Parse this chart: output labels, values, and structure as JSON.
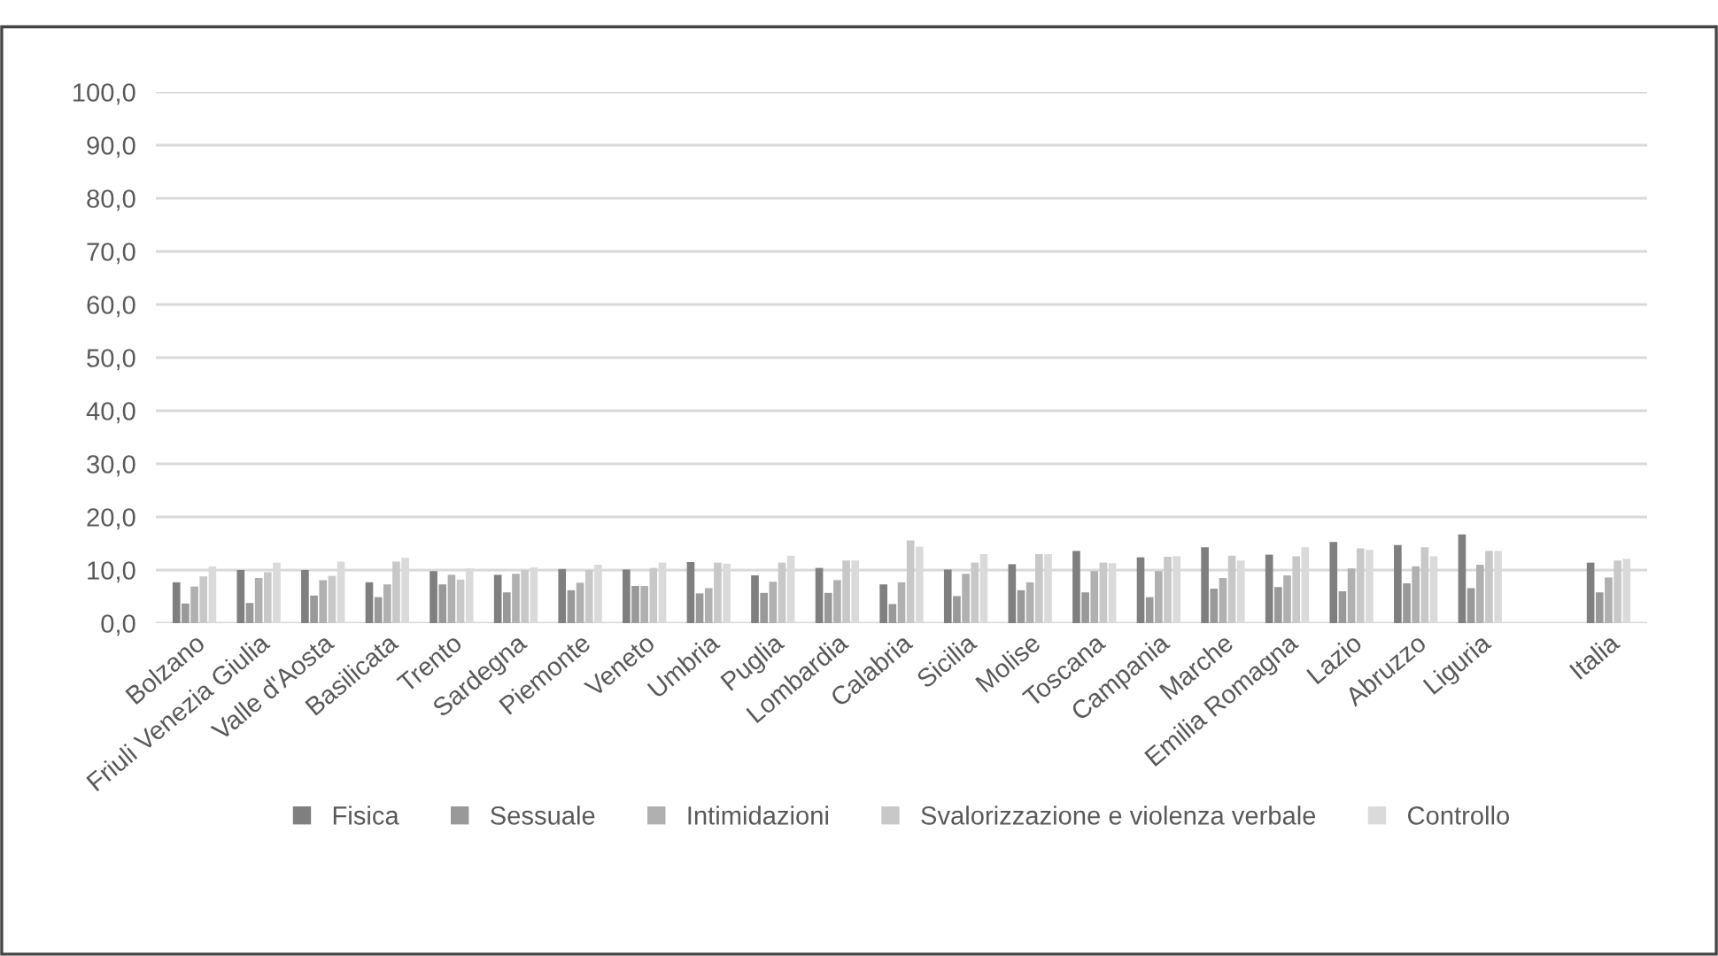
{
  "chart_data": {
    "type": "bar",
    "categories": [
      "Bolzano",
      "Friuli Venezia Giulia",
      "Valle d'Aosta",
      "Basilicata",
      "Trento",
      "Sardegna",
      "Piemonte",
      "Veneto",
      "Umbria",
      "Puglia",
      "Lombardia",
      "Calabria",
      "Sicilia",
      "Molise",
      "Toscana",
      "Campania",
      "Marche",
      "Emilia Romagna",
      "Lazio",
      "Abruzzo",
      "Liguria",
      null,
      "Italia"
    ],
    "series": [
      {
        "name": "Fisica",
        "color": "#7f7f7f",
        "values": [
          7.7,
          10.0,
          10.0,
          7.7,
          9.8,
          9.1,
          10.2,
          10.1,
          11.5,
          9.0,
          10.4,
          7.3,
          10.1,
          11.1,
          13.6,
          12.4,
          14.3,
          12.9,
          15.3,
          14.7,
          16.7,
          null,
          11.4
        ]
      },
      {
        "name": "Sessuale",
        "color": "#999999",
        "values": [
          3.7,
          3.8,
          5.2,
          4.9,
          7.3,
          5.8,
          6.2,
          7.0,
          5.6,
          5.7,
          5.7,
          3.6,
          5.1,
          6.2,
          5.8,
          4.9,
          6.5,
          6.8,
          6.0,
          7.5,
          6.6,
          null,
          5.8
        ]
      },
      {
        "name": "Intimidazioni",
        "color": "#b0b0b0",
        "values": [
          6.9,
          8.5,
          8.1,
          7.3,
          9.1,
          9.3,
          7.6,
          7.0,
          6.6,
          7.8,
          8.1,
          7.7,
          9.3,
          7.7,
          9.8,
          9.8,
          8.5,
          9.0,
          10.3,
          10.7,
          11.0,
          null,
          8.6
        ]
      },
      {
        "name": "Svalorizzazione e violenza verbale",
        "color": "#c8c8c8",
        "values": [
          8.8,
          9.6,
          8.9,
          11.6,
          8.2,
          10.0,
          10.0,
          10.4,
          11.4,
          11.4,
          11.8,
          15.6,
          11.4,
          13.0,
          11.4,
          12.5,
          12.7,
          12.6,
          14.1,
          14.3,
          13.6,
          null,
          11.8
        ]
      },
      {
        "name": "Controllo",
        "color": "#dadada",
        "values": [
          10.7,
          11.4,
          11.6,
          12.3,
          10.3,
          10.5,
          11.0,
          11.4,
          11.2,
          12.7,
          11.8,
          14.4,
          13.0,
          13.0,
          11.3,
          12.6,
          11.8,
          14.3,
          13.8,
          12.6,
          13.6,
          null,
          12.1
        ]
      }
    ],
    "ylim": [
      0,
      100
    ],
    "yticks": [
      {
        "value": 0,
        "label": "0,0"
      },
      {
        "value": 10,
        "label": "10,0"
      },
      {
        "value": 20,
        "label": "20,0"
      },
      {
        "value": 30,
        "label": "30,0"
      },
      {
        "value": 40,
        "label": "40,0"
      },
      {
        "value": 50,
        "label": "50,0"
      },
      {
        "value": 60,
        "label": "60,0"
      },
      {
        "value": 70,
        "label": "70,0"
      },
      {
        "value": 80,
        "label": "80,0"
      },
      {
        "value": 90,
        "label": "90,0"
      },
      {
        "value": 100,
        "label": "100,0"
      }
    ],
    "grid": "y",
    "legend": "bottom"
  }
}
